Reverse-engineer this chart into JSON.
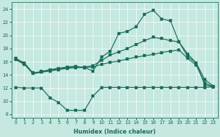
{
  "xlabel": "Humidex (Indice chaleur)",
  "xlim": [
    -0.5,
    23.5
  ],
  "ylim": [
    7.5,
    25.0
  ],
  "xticks": [
    0,
    1,
    2,
    3,
    4,
    5,
    6,
    7,
    8,
    9,
    10,
    11,
    12,
    13,
    14,
    15,
    16,
    17,
    18,
    19,
    20,
    21,
    22,
    23
  ],
  "yticks": [
    8,
    10,
    12,
    14,
    16,
    18,
    20,
    22,
    24
  ],
  "bg_color": "#c5e8e0",
  "line_color": "#1a6b5a",
  "line1_y": [
    16.5,
    15.8,
    14.3,
    14.5,
    14.8,
    15.0,
    15.2,
    15.3,
    15.1,
    14.6,
    16.7,
    17.6,
    20.3,
    20.6,
    21.3,
    23.2,
    23.8,
    22.5,
    22.2,
    19.0,
    16.8,
    15.8,
    13.3,
    12.3
  ],
  "line2_y": [
    16.4,
    15.7,
    14.2,
    14.4,
    14.7,
    14.9,
    15.1,
    15.2,
    15.2,
    15.4,
    16.2,
    17.0,
    17.5,
    18.0,
    18.6,
    19.2,
    19.7,
    19.5,
    19.2,
    19.0,
    17.2,
    15.8,
    12.5,
    12.2
  ],
  "line4_y": [
    16.3,
    15.6,
    14.2,
    14.4,
    14.6,
    14.8,
    15.0,
    15.1,
    15.1,
    15.2,
    15.6,
    15.9,
    16.1,
    16.4,
    16.7,
    16.9,
    17.1,
    17.4,
    17.6,
    17.8,
    16.5,
    15.5,
    12.8,
    12.2
  ],
  "line3_y": [
    12.1,
    12.0,
    12.0,
    12.0,
    10.5,
    9.8,
    8.6,
    8.6,
    8.6,
    10.8,
    12.1,
    12.1,
    12.1,
    12.1,
    12.1,
    12.1,
    12.1,
    12.1,
    12.1,
    12.1,
    12.1,
    12.1,
    12.1,
    12.2
  ],
  "tick_fontsize": 5,
  "xlabel_fontsize": 6
}
